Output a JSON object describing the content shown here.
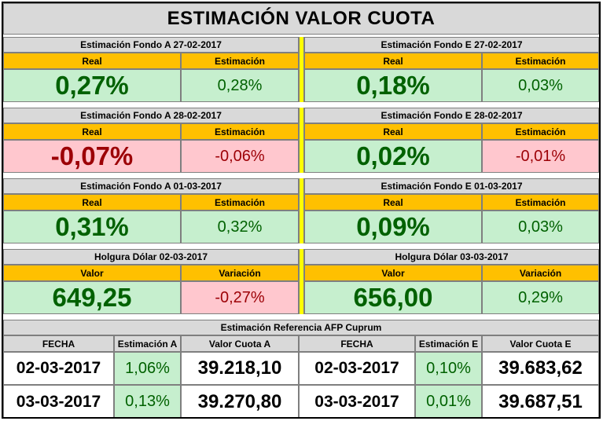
{
  "title": "ESTIMACIÓN VALOR CUOTA",
  "blocks": [
    {
      "left": {
        "header": "Estimación Fondo A  27-02-2017",
        "col1": "Real",
        "col2": "Estimación",
        "v1": "0,27%",
        "v2": "0,28%"
      },
      "right": {
        "header": "Estimación Fondo E  27-02-2017",
        "col1": "Real",
        "col2": "Estimación",
        "v1": "0,18%",
        "v2": "0,03%"
      }
    },
    {
      "left": {
        "header": "Estimación Fondo A  28-02-2017",
        "col1": "Real",
        "col2": "Estimación",
        "v1": "-0,07%",
        "v2": "-0,06%"
      },
      "right": {
        "header": "Estimación Fondo E  28-02-2017",
        "col1": "Real",
        "col2": "Estimación",
        "v1": "0,02%",
        "v2": "-0,01%"
      }
    },
    {
      "left": {
        "header": "Estimación Fondo A  01-03-2017",
        "col1": "Real",
        "col2": "Estimación",
        "v1": "0,31%",
        "v2": "0,32%"
      },
      "right": {
        "header": "Estimación Fondo E  01-03-2017",
        "col1": "Real",
        "col2": "Estimación",
        "v1": "0,09%",
        "v2": "0,03%"
      }
    },
    {
      "left": {
        "header": "Holgura Dólar  02-03-2017",
        "col1": "Valor",
        "col2": "Variación",
        "v1": "649,25",
        "v2": "-0,27%"
      },
      "right": {
        "header": "Holgura Dólar  03-03-2017",
        "col1": "Valor",
        "col2": "Variación",
        "v1": "656,00",
        "v2": "0,29%"
      }
    }
  ],
  "reference": {
    "title": "Estimación Referencia AFP Cuprum",
    "headers": [
      "FECHA",
      "Estimación A",
      "Valor Cuota A",
      "FECHA",
      "Estimación E",
      "Valor Cuota E"
    ],
    "rows": [
      [
        "02-03-2017",
        "1,06%",
        "39.218,10",
        "02-03-2017",
        "0,10%",
        "39.683,62"
      ],
      [
        "03-03-2017",
        "0,13%",
        "39.270,80",
        "03-03-2017",
        "0,01%",
        "39.687,51"
      ]
    ]
  },
  "colors": {
    "header_gray": "#d9d9d9",
    "col_header_orange": "#ffc000",
    "positive_fill": "#c6efce",
    "positive_text": "#006100",
    "negative_fill": "#ffc7ce",
    "negative_text": "#9c0006",
    "separator_yellow": "#ffff00"
  }
}
